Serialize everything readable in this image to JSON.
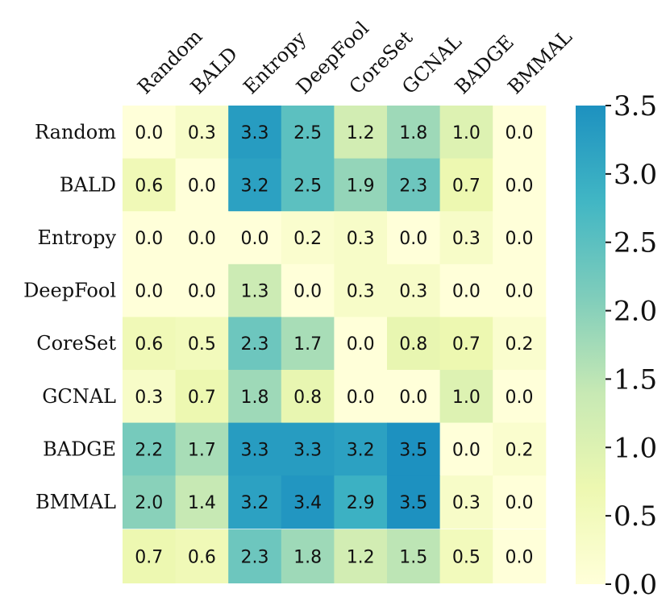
{
  "chart_data": {
    "type": "heatmap",
    "columns": [
      "Random",
      "BALD",
      "Entropy",
      "DeepFool",
      "CoreSet",
      "GCNAL",
      "BADGE",
      "BMMAL"
    ],
    "rows": [
      "Random",
      "BALD",
      "Entropy",
      "DeepFool",
      "CoreSet",
      "GCNAL",
      "BADGE",
      "BMMAL"
    ],
    "values": [
      [
        0.0,
        0.3,
        3.3,
        2.5,
        1.2,
        1.8,
        1.0,
        0.0
      ],
      [
        0.6,
        0.0,
        3.2,
        2.5,
        1.9,
        2.3,
        0.7,
        0.0
      ],
      [
        0.0,
        0.0,
        0.0,
        0.2,
        0.3,
        0.0,
        0.3,
        0.0
      ],
      [
        0.0,
        0.0,
        1.3,
        0.0,
        0.3,
        0.3,
        0.0,
        0.0
      ],
      [
        0.6,
        0.5,
        2.3,
        1.7,
        0.0,
        0.8,
        0.7,
        0.2
      ],
      [
        0.3,
        0.7,
        1.8,
        0.8,
        0.0,
        0.0,
        1.0,
        0.0
      ],
      [
        2.2,
        1.7,
        3.3,
        3.3,
        3.2,
        3.5,
        0.0,
        0.2
      ],
      [
        2.0,
        1.4,
        3.2,
        3.4,
        2.9,
        3.5,
        0.3,
        0.0
      ]
    ],
    "summary_row": {
      "label": "",
      "values": [
        0.7,
        0.6,
        2.3,
        1.8,
        1.2,
        1.5,
        0.5,
        0.0
      ]
    },
    "colorbar": {
      "range": [
        0.0,
        3.5
      ],
      "ticks": [
        "0.0",
        "0.5",
        "1.0",
        "1.5",
        "2.0",
        "2.5",
        "3.0",
        "3.5"
      ],
      "colormap": "YlGnBu",
      "color_stops": [
        "#ffffd9",
        "#edf8b1",
        "#c7e9b4",
        "#7fcdbb",
        "#41b6c4",
        "#1d91c0"
      ]
    }
  }
}
